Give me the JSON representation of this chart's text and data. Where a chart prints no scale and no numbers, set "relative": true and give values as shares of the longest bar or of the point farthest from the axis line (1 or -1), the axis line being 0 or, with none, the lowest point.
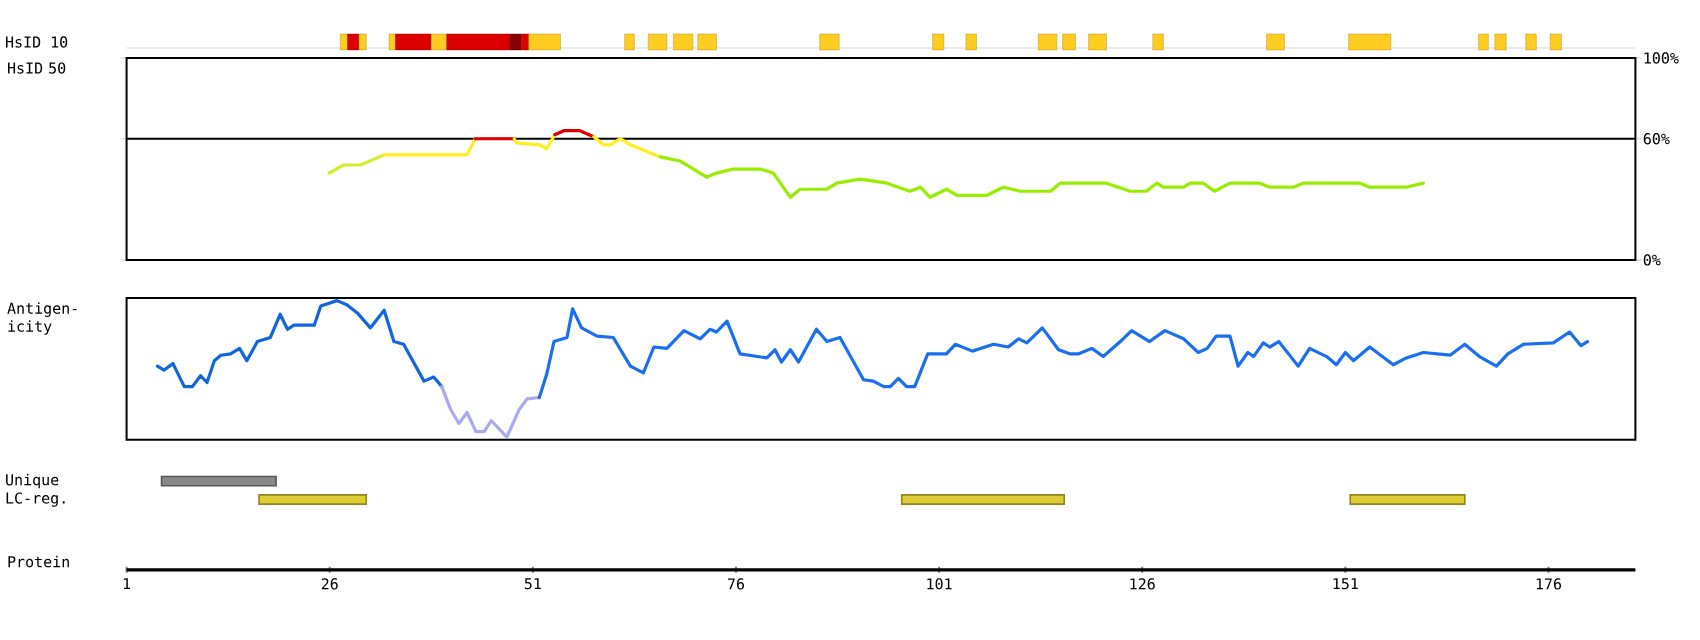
{
  "chart_data": [
    {
      "type": "bar",
      "orientation": "horizontal",
      "categories": [
        "HsID 10"
      ],
      "xlim": [
        1,
        186.7
      ],
      "tick_labels": "y",
      "series": [
        {
          "color": "#ffcc22",
          "base": [
            27.3
          ],
          "values": [
            0.9
          ]
        },
        {
          "color": "#dd0000",
          "base": [
            28.2
          ],
          "values": [
            1.4
          ]
        },
        {
          "color": "#ffcc22",
          "base": [
            29.6
          ],
          "values": [
            0.9
          ]
        },
        {
          "color": "#ffcc22",
          "base": [
            33.3
          ],
          "values": [
            0.8
          ]
        },
        {
          "color": "#dd0000",
          "base": [
            34.1
          ],
          "values": [
            4.4
          ]
        },
        {
          "color": "#ffcc22",
          "base": [
            38.5
          ],
          "values": [
            1.9
          ]
        },
        {
          "color": "#dd0000",
          "base": [
            40.4
          ],
          "values": [
            7.8
          ]
        },
        {
          "color": "#880000",
          "base": [
            48.2
          ],
          "values": [
            1.4
          ]
        },
        {
          "color": "#dd0000",
          "base": [
            49.6
          ],
          "values": [
            0.9
          ]
        },
        {
          "color": "#ffcc22",
          "base": [
            50.5
          ],
          "values": [
            3.9
          ]
        },
        {
          "color": "#ffcc22",
          "base": [
            62.3
          ],
          "values": [
            1.2
          ]
        },
        {
          "color": "#ffcc22",
          "base": [
            65.2
          ],
          "values": [
            2.3
          ]
        },
        {
          "color": "#ffcc22",
          "base": [
            68.3
          ],
          "values": [
            2.4
          ]
        },
        {
          "color": "#ffcc22",
          "base": [
            71.3
          ],
          "values": [
            2.3
          ]
        },
        {
          "color": "#ffcc22",
          "base": [
            86.3
          ],
          "values": [
            2.4
          ]
        },
        {
          "color": "#ffcc22",
          "base": [
            100.2
          ],
          "values": [
            1.4
          ]
        },
        {
          "color": "#ffcc22",
          "base": [
            104.3
          ],
          "values": [
            1.3
          ]
        },
        {
          "color": "#ffcc22",
          "base": [
            113.2
          ],
          "values": [
            2.3
          ]
        },
        {
          "color": "#ffcc22",
          "base": [
            116.2
          ],
          "values": [
            1.6
          ]
        },
        {
          "color": "#ffcc22",
          "base": [
            119.4
          ],
          "values": [
            2.2
          ]
        },
        {
          "color": "#ffcc22",
          "base": [
            127.3
          ],
          "values": [
            1.3
          ]
        },
        {
          "color": "#ffcc22",
          "base": [
            141.3
          ],
          "values": [
            2.2
          ]
        },
        {
          "color": "#ffcc22",
          "base": [
            151.4
          ],
          "values": [
            5.2
          ]
        },
        {
          "color": "#ffcc22",
          "base": [
            167.4
          ],
          "values": [
            1.2
          ]
        },
        {
          "color": "#ffcc22",
          "base": [
            169.4
          ],
          "values": [
            1.4
          ]
        },
        {
          "color": "#ffcc22",
          "base": [
            173.2
          ],
          "values": [
            1.3
          ]
        },
        {
          "color": "#ffcc22",
          "base": [
            176.2
          ],
          "values": [
            1.4
          ]
        }
      ]
    },
    {
      "type": "line",
      "ylabel": "HsID 50",
      "xlim": [
        1,
        186.7
      ],
      "ylim": [
        0,
        100
      ],
      "tick_labels": "y",
      "yticks": [
        {
          "value": 0,
          "label": "0%"
        },
        {
          "value": 60,
          "label": "60%"
        },
        {
          "value": 100,
          "label": "100%"
        }
      ],
      "ref_lines": [
        {
          "axis": "y",
          "value": 60,
          "color": "#000000"
        }
      ],
      "series": [
        {
          "color": "#d4ee2a",
          "x": [
            25.9,
            27.7,
            29.8,
            32.7
          ],
          "values": [
            43,
            47,
            47,
            52
          ]
        },
        {
          "color": "#ffee22",
          "x": [
            32.7,
            42.9,
            43.9
          ],
          "values": [
            52,
            52,
            60
          ]
        },
        {
          "color": "#dd0000",
          "x": [
            43.9,
            48.7
          ],
          "values": [
            60,
            60
          ]
        },
        {
          "color": "#ffee22",
          "x": [
            48.7,
            49.0,
            51.9,
            52.7,
            53.7
          ],
          "values": [
            60,
            58,
            57,
            55,
            62
          ]
        },
        {
          "color": "#dd0000",
          "x": [
            53.7,
            54.8,
            56.8,
            58.5
          ],
          "values": [
            62,
            64,
            64,
            61
          ]
        },
        {
          "color": "#ffee22",
          "x": [
            58.5,
            59.7,
            60.5,
            61.8,
            63.0,
            66.7
          ],
          "values": [
            61,
            57,
            57,
            60,
            57,
            51
          ]
        },
        {
          "color": "#99ee00",
          "x": [
            66.7,
            69.1,
            72.4,
            73.6,
            75.7,
            79.0,
            80.6,
            82.7,
            83.9,
            87.2,
            88.4,
            91.3,
            94.6,
            97.4,
            98.7,
            99.9,
            101.9,
            103.2,
            106.9,
            108.9,
            111.0,
            114.7,
            115.9,
            121.6,
            124.5,
            126.5,
            127.8,
            128.6,
            131.1,
            131.9,
            133.5,
            134.9,
            136.8,
            140.5,
            141.7,
            144.6,
            145.8,
            152.8,
            154.0,
            158.5,
            160.6
          ],
          "values": [
            51,
            49,
            41,
            43,
            45,
            45,
            43,
            31,
            35,
            35,
            38,
            40,
            38,
            34,
            36,
            31,
            35,
            32,
            32,
            36,
            34,
            34,
            38,
            38,
            34,
            34,
            38,
            36,
            36,
            38,
            38,
            34,
            38,
            38,
            36,
            36,
            38,
            38,
            36,
            36,
            38
          ]
        }
      ]
    },
    {
      "type": "line",
      "relative": true,
      "ylabel": "Antigen-icity",
      "xlim": [
        1,
        186.7
      ],
      "tick_labels": false,
      "series": [
        {
          "color": "#1166dd",
          "x": [
            4.8,
            5.6,
            6.7,
            8.1,
            9.1,
            10.1,
            10.9,
            11.8,
            12.6,
            13.8,
            14.9,
            15.8,
            17.1,
            18.7,
            19.9,
            20.8,
            21.6,
            24.1,
            24.9,
            26.9,
            28.1,
            29.4,
            31.0,
            32.7,
            33.9,
            35.1,
            37.6,
            38.8,
            39.8
          ],
          "values": [
            0.52,
            0.49,
            0.54,
            0.37,
            0.37,
            0.45,
            0.4,
            0.56,
            0.6,
            0.61,
            0.65,
            0.56,
            0.7,
            0.73,
            0.9,
            0.79,
            0.82,
            0.82,
            0.96,
            1,
            0.97,
            0.91,
            0.8,
            0.93,
            0.7,
            0.68,
            0.41,
            0.44,
            0.37
          ]
        },
        {
          "color": "#aaaaee",
          "x": [
            39.8,
            40.9,
            41.9,
            42.9,
            44.0,
            45.0,
            45.9,
            47.8,
            49.3,
            50.3,
            51.8
          ],
          "values": [
            0.37,
            0.2,
            0.1,
            0.18,
            0.04,
            0.04,
            0.12,
            0,
            0.2,
            0.28,
            0.29
          ]
        },
        {
          "color": "#1a6ef0",
          "x": [
            51.8,
            52.7,
            53.6,
            55.2,
            55.9,
            57.0,
            58.9,
            60.9,
            63.0,
            64.6,
            65.9,
            67.5,
            69.6,
            71.6,
            72.8,
            73.6,
            74.9,
            76.5,
            79.8,
            80.8,
            81.6,
            82.7,
            83.7,
            85.9,
            87.2,
            88.8,
            91.7,
            92.9,
            94.2,
            95.0,
            96.0,
            97.0,
            98.0,
            99.6,
            101.9,
            103.0,
            105.1,
            107.7,
            109.5,
            110.8,
            111.8,
            113.7,
            115.7,
            117.1,
            118.2,
            119.8,
            121.2,
            123.3,
            124.7,
            126.9,
            128.8,
            131.1,
            132.9,
            134.0,
            135.1,
            136.8,
            137.8,
            139.0,
            139.7,
            140.9,
            141.7,
            142.8,
            145.2,
            146.6,
            148.7,
            149.9,
            151.0,
            152.0,
            154.0,
            156.9,
            158.5,
            160.6,
            163.9,
            165.7,
            167.5,
            169.6,
            171.0,
            172.9,
            176.6,
            178.6,
            180.0,
            180.8
          ],
          "values": [
            0.29,
            0.46,
            0.7,
            0.73,
            0.94,
            0.8,
            0.74,
            0.73,
            0.52,
            0.47,
            0.66,
            0.65,
            0.78,
            0.72,
            0.79,
            0.77,
            0.85,
            0.61,
            0.58,
            0.64,
            0.55,
            0.64,
            0.55,
            0.79,
            0.7,
            0.73,
            0.42,
            0.41,
            0.37,
            0.37,
            0.43,
            0.37,
            0.37,
            0.61,
            0.61,
            0.68,
            0.63,
            0.68,
            0.66,
            0.72,
            0.69,
            0.8,
            0.64,
            0.61,
            0.61,
            0.65,
            0.59,
            0.7,
            0.78,
            0.7,
            0.78,
            0.72,
            0.62,
            0.65,
            0.74,
            0.74,
            0.52,
            0.62,
            0.59,
            0.69,
            0.66,
            0.7,
            0.52,
            0.65,
            0.59,
            0.53,
            0.62,
            0.56,
            0.66,
            0.53,
            0.58,
            0.62,
            0.6,
            0.68,
            0.59,
            0.52,
            0.61,
            0.68,
            0.69,
            0.77,
            0.67,
            0.7
          ]
        }
      ]
    },
    {
      "type": "bar",
      "orientation": "horizontal",
      "categories": [
        "Unique",
        "LC-reg."
      ],
      "xlabel": "Protein",
      "xlim": [
        1,
        186.7
      ],
      "xticks": [
        1,
        26,
        51,
        76,
        101,
        126,
        151,
        176
      ],
      "series": [
        {
          "color": "#888888",
          "base": [
            5.3,
            null
          ],
          "values": [
            14.1,
            null
          ]
        },
        {
          "color": "#ddcc33",
          "base": [
            null,
            17.3
          ],
          "values": [
            null,
            13.2
          ]
        },
        {
          "color": "#ddcc33",
          "base": [
            null,
            96.4
          ],
          "values": [
            null,
            20.0
          ]
        },
        {
          "color": "#ddcc33",
          "base": [
            null,
            151.6
          ],
          "values": [
            null,
            14.1
          ]
        }
      ]
    }
  ]
}
